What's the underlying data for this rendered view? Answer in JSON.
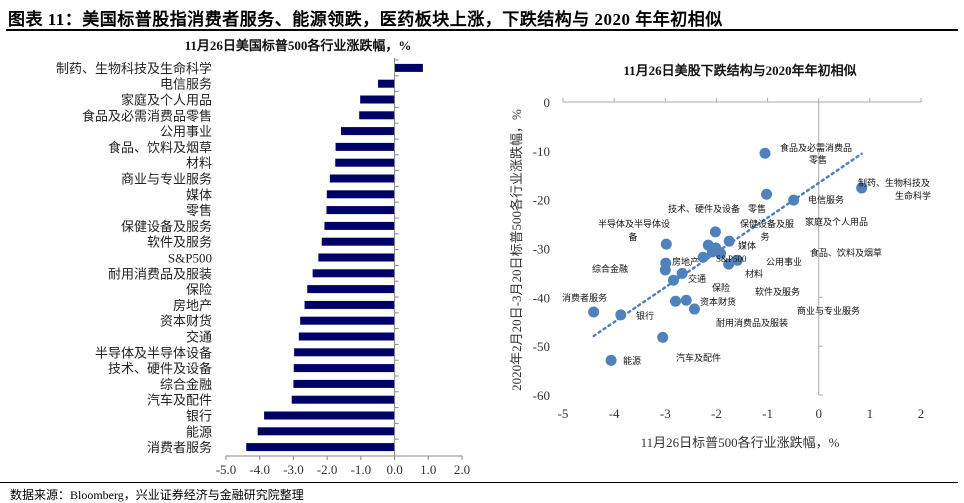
{
  "figure": {
    "title": "图表 11：美国标普股指消费者服务、能源领跌，医药板块上涨，下跌结构与 2020 年年初相似",
    "source": "数据来源：Bloomberg，兴业证券经济与金融研究院整理"
  },
  "colors": {
    "bar": "#000066",
    "point": "#4f81bd",
    "trendline": "#4f81bd"
  },
  "chart_data": [
    {
      "type": "bar",
      "orientation": "horizontal",
      "title": "11月26日美国标普500各行业涨跌幅，%",
      "categories": [
        "制药、生物科技及生命科学",
        "电信服务",
        "家庭及个人用品",
        "食品及必需消费品零售",
        "公用事业",
        "食品、饮料及烟草",
        "材料",
        "商业与专业服务",
        "媒体",
        "零售",
        "保健设备及服务",
        "软件及服务",
        "S&P500",
        "耐用消费品及服装",
        "保险",
        "房地产",
        "资本财货",
        "交通",
        "半导体及半导体设备",
        "技术、硬件及设备",
        "综合金融",
        "汽车及配件",
        "银行",
        "能源",
        "消费者服务"
      ],
      "values": [
        0.84,
        -0.49,
        -1.02,
        -1.05,
        -1.59,
        -1.75,
        -1.76,
        -1.92,
        -2.01,
        -2.02,
        -2.08,
        -2.16,
        -2.26,
        -2.43,
        -2.59,
        -2.67,
        -2.8,
        -2.84,
        -2.98,
        -2.99,
        -3.0,
        -3.05,
        -3.87,
        -4.06,
        -4.4
      ],
      "xlim": [
        -5,
        2
      ],
      "xticks": [
        "-5.0",
        "-4.0",
        "-3.0",
        "-2.0",
        "-1.0",
        "0.0",
        "1.0",
        "2.0"
      ],
      "grid": false
    },
    {
      "type": "scatter",
      "title": "11月26日美股下跌结构与2020年年初相似",
      "xlabel": "11月26日标普500各行业涨跌幅，%",
      "ylabel": "2020年2月20日-3月20日标普500各行业涨跌幅，%",
      "xlim": [
        -5,
        2
      ],
      "ylim": [
        -60,
        0
      ],
      "xticks": [
        "-5",
        "-4",
        "-3",
        "-2",
        "-1",
        "0",
        "1",
        "2"
      ],
      "yticks": [
        "0",
        "-10",
        "-20",
        "-30",
        "-40",
        "-50",
        "-60"
      ],
      "trendline": "linear (dotted)",
      "grid": false,
      "points": [
        {
          "label": "制药、生物科技及生命科学",
          "x": 0.84,
          "y": -17.6
        },
        {
          "label": "电信服务",
          "x": -0.49,
          "y": -20.1
        },
        {
          "label": "家庭及个人用品",
          "x": -1.02,
          "y": -18.9
        },
        {
          "label": "食品及必需消费品零售",
          "x": -1.05,
          "y": -10.5
        },
        {
          "label": "公用事业",
          "x": -1.59,
          "y": -32.4
        },
        {
          "label": "食品、饮料及烟草",
          "x": -1.75,
          "y": -28.5
        },
        {
          "label": "材料",
          "x": -1.76,
          "y": -33.2
        },
        {
          "label": "商业与专业服务",
          "x": -1.92,
          "y": -31.0
        },
        {
          "label": "媒体",
          "x": -2.01,
          "y": -29.9
        },
        {
          "label": "零售",
          "x": -2.02,
          "y": -26.6
        },
        {
          "label": "保健设备及服务",
          "x": -2.08,
          "y": -30.7
        },
        {
          "label": "软件及服务",
          "x": -2.16,
          "y": -29.3
        },
        {
          "label": "S&P500",
          "x": -2.26,
          "y": -31.8
        },
        {
          "label": "耐用消费品及服装",
          "x": -2.43,
          "y": -42.4
        },
        {
          "label": "保险",
          "x": -2.59,
          "y": -40.6
        },
        {
          "label": "房地产",
          "x": -2.67,
          "y": -35.1
        },
        {
          "label": "资本财货",
          "x": -2.8,
          "y": -40.8
        },
        {
          "label": "交通",
          "x": -2.84,
          "y": -36.5
        },
        {
          "label": "半导体及半导体设备",
          "x": -2.98,
          "y": -29.1
        },
        {
          "label": "技术、硬件及设备",
          "x": -2.99,
          "y": -33.0
        },
        {
          "label": "综合金融",
          "x": -3.0,
          "y": -34.4
        },
        {
          "label": "汽车及配件",
          "x": -3.05,
          "y": -48.2
        },
        {
          "label": "银行",
          "x": -3.87,
          "y": -43.6
        },
        {
          "label": "能源",
          "x": -4.06,
          "y": -52.9
        },
        {
          "label": "消费者服务",
          "x": -4.4,
          "y": -43.0
        }
      ]
    }
  ]
}
